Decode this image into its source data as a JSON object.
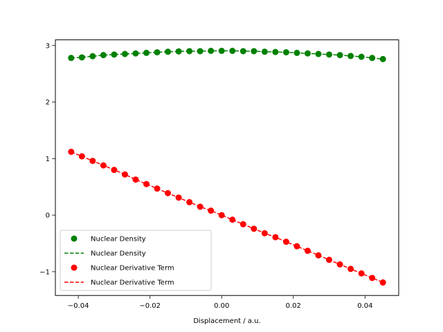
{
  "chart_data": {
    "type": "line",
    "title": "",
    "xlabel": "Displacement / a.u.",
    "ylabel": "",
    "xlim": [
      -0.0464,
      0.0494
    ],
    "ylim": [
      -1.42,
      3.1
    ],
    "xticks": [
      -0.04,
      -0.02,
      0.0,
      0.02,
      0.04
    ],
    "xtick_labels": [
      "−0.04",
      "−0.02",
      "0.00",
      "0.02",
      "0.04"
    ],
    "yticks": [
      -1,
      0,
      1,
      2,
      3
    ],
    "ytick_labels": [
      "−1",
      "0",
      "1",
      "2",
      "3"
    ],
    "grid": false,
    "legend_position": "lower-left",
    "x": [
      -0.042,
      -0.039,
      -0.036,
      -0.033,
      -0.03,
      -0.027,
      -0.024,
      -0.021,
      -0.018,
      -0.015,
      -0.012,
      -0.009,
      -0.006,
      -0.003,
      0.0,
      0.003,
      0.006,
      0.009,
      0.012,
      0.015,
      0.018,
      0.021,
      0.024,
      0.027,
      0.03,
      0.033,
      0.036,
      0.039,
      0.042,
      0.045
    ],
    "series": [
      {
        "name": "Nuclear Density",
        "style": "marker",
        "color": "#008000",
        "values": [
          2.78,
          2.79,
          2.81,
          2.83,
          2.84,
          2.85,
          2.86,
          2.87,
          2.88,
          2.89,
          2.895,
          2.9,
          2.9,
          2.905,
          2.905,
          2.905,
          2.9,
          2.9,
          2.89,
          2.885,
          2.88,
          2.87,
          2.86,
          2.85,
          2.84,
          2.83,
          2.815,
          2.8,
          2.78,
          2.76
        ]
      },
      {
        "name": "Nuclear Density",
        "style": "dashed",
        "color": "#008000",
        "values": [
          2.78,
          2.79,
          2.81,
          2.83,
          2.84,
          2.85,
          2.86,
          2.87,
          2.88,
          2.89,
          2.895,
          2.9,
          2.9,
          2.905,
          2.905,
          2.905,
          2.9,
          2.9,
          2.89,
          2.885,
          2.88,
          2.87,
          2.86,
          2.85,
          2.84,
          2.83,
          2.815,
          2.8,
          2.78,
          2.76
        ]
      },
      {
        "name": "Nuclear Derivative Term",
        "style": "marker",
        "color": "#ff0000",
        "values": [
          1.12,
          1.04,
          0.96,
          0.88,
          0.8,
          0.72,
          0.63,
          0.55,
          0.47,
          0.39,
          0.31,
          0.23,
          0.15,
          0.08,
          0.0,
          -0.08,
          -0.16,
          -0.24,
          -0.32,
          -0.39,
          -0.47,
          -0.55,
          -0.63,
          -0.71,
          -0.79,
          -0.87,
          -0.95,
          -1.03,
          -1.11,
          -1.19
        ]
      },
      {
        "name": "Nuclear Derivative Term",
        "style": "dashed",
        "color": "#ff0000",
        "values": [
          1.12,
          1.04,
          0.96,
          0.88,
          0.8,
          0.72,
          0.63,
          0.55,
          0.47,
          0.39,
          0.31,
          0.23,
          0.15,
          0.08,
          0.0,
          -0.08,
          -0.16,
          -0.24,
          -0.32,
          -0.39,
          -0.47,
          -0.55,
          -0.63,
          -0.71,
          -0.79,
          -0.87,
          -0.95,
          -1.03,
          -1.11,
          -1.19
        ]
      }
    ]
  }
}
